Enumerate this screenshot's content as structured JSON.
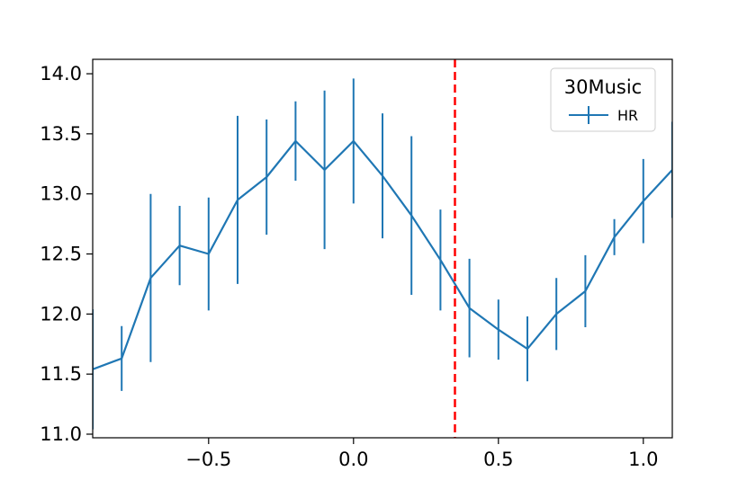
{
  "chart_data": {
    "type": "line",
    "title": "",
    "xlabel": "",
    "ylabel": "",
    "xlim": [
      -0.9,
      1.1
    ],
    "ylim": [
      10.97,
      14.12
    ],
    "x_ticks": [
      -0.5,
      0.0,
      0.5,
      1.0
    ],
    "x_tick_labels": [
      "−0.5",
      "0.0",
      "0.5",
      "1.0"
    ],
    "y_ticks": [
      11.0,
      11.5,
      12.0,
      12.5,
      13.0,
      13.5,
      14.0
    ],
    "y_tick_labels": [
      "11.0",
      "11.5",
      "12.0",
      "12.5",
      "13.0",
      "13.5",
      "14.0"
    ],
    "grid": false,
    "legend": {
      "title": "30Music",
      "placement": "top-right",
      "entries": [
        "HR"
      ]
    },
    "series": [
      {
        "name": "HR",
        "color": "#1f77b4",
        "x": [
          -0.9,
          -0.8,
          -0.7,
          -0.6,
          -0.5,
          -0.4,
          -0.3,
          -0.2,
          -0.1,
          0.0,
          0.1,
          0.2,
          0.3,
          0.4,
          0.5,
          0.6,
          0.7,
          0.8,
          0.9,
          1.0,
          1.1
        ],
        "y": [
          11.54,
          11.63,
          12.3,
          12.57,
          12.5,
          12.95,
          13.14,
          13.44,
          13.2,
          13.44,
          13.15,
          12.82,
          12.45,
          12.05,
          11.87,
          11.71,
          12.0,
          12.19,
          12.64,
          12.94,
          13.2
        ],
        "error": [
          0.5,
          0.27,
          0.7,
          0.33,
          0.47,
          0.7,
          0.48,
          0.33,
          0.66,
          0.52,
          0.52,
          0.66,
          0.42,
          0.41,
          0.25,
          0.27,
          0.3,
          0.3,
          0.15,
          0.35,
          0.4
        ]
      }
    ],
    "annotations": [
      {
        "type": "vline",
        "x": 0.35,
        "color": "#ff0000",
        "style": "dashed"
      }
    ]
  }
}
